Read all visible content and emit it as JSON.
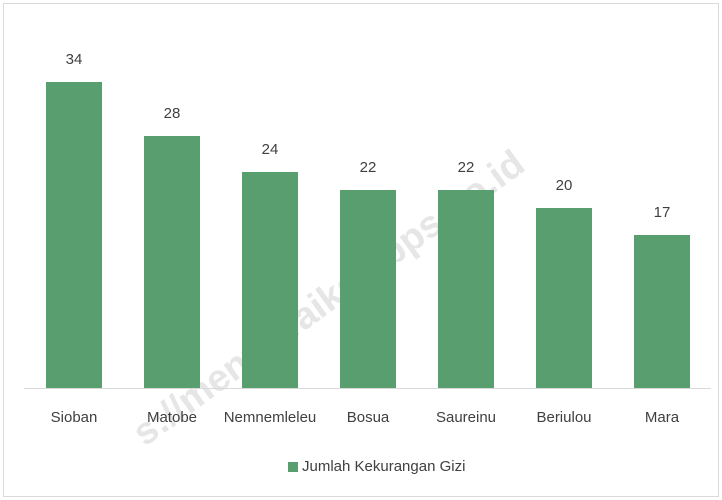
{
  "chart_data": {
    "type": "bar",
    "categories": [
      "Sioban",
      "Matobe",
      "Nemnemleleu",
      "Bosua",
      "Saureinu",
      "Beriulou",
      "Mara"
    ],
    "series": [
      {
        "name": "Jumlah Kekurangan Gizi",
        "color": "#589e6e",
        "values": [
          34,
          28,
          24,
          22,
          22,
          20,
          17
        ]
      }
    ],
    "ylim": [
      0,
      40
    ],
    "legend": "bottom",
    "watermark": "s://mentawaikab.bps.go.id"
  }
}
